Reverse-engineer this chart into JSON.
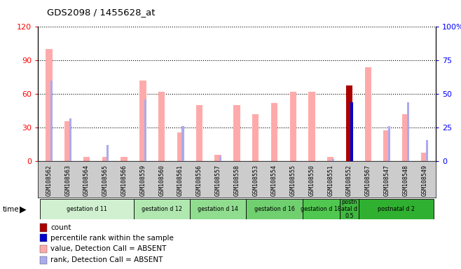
{
  "title": "GDS2098 / 1455628_at",
  "samples": [
    "GSM108562",
    "GSM108563",
    "GSM108564",
    "GSM108565",
    "GSM108566",
    "GSM108559",
    "GSM108560",
    "GSM108561",
    "GSM108556",
    "GSM108557",
    "GSM108558",
    "GSM108553",
    "GSM108554",
    "GSM108555",
    "GSM108550",
    "GSM108551",
    "GSM108552",
    "GSM108567",
    "GSM108547",
    "GSM108548",
    "GSM108549"
  ],
  "value_absent": [
    100,
    36,
    4,
    4,
    4,
    72,
    62,
    26,
    50,
    6,
    50,
    42,
    52,
    62,
    62,
    4,
    0,
    84,
    28,
    42,
    8
  ],
  "rank_absent": [
    60,
    32,
    0,
    12,
    0,
    46,
    0,
    26,
    0,
    4,
    0,
    0,
    0,
    0,
    0,
    2,
    0,
    0,
    26,
    44,
    16
  ],
  "count_bar": [
    0,
    0,
    0,
    0,
    0,
    0,
    0,
    0,
    0,
    0,
    0,
    0,
    0,
    0,
    0,
    0,
    68,
    0,
    0,
    0,
    0
  ],
  "percentile_bar": [
    0,
    0,
    0,
    0,
    0,
    0,
    0,
    0,
    0,
    0,
    0,
    0,
    0,
    0,
    0,
    0,
    44,
    0,
    0,
    0,
    0
  ],
  "groups": [
    {
      "label": "gestation d 11",
      "start": 0,
      "end": 5,
      "color": "#d0f0d0"
    },
    {
      "label": "gestation d 12",
      "start": 5,
      "end": 8,
      "color": "#b0e8b0"
    },
    {
      "label": "gestation d 14",
      "start": 8,
      "end": 11,
      "color": "#90dd90"
    },
    {
      "label": "gestation d 16",
      "start": 11,
      "end": 14,
      "color": "#70d070"
    },
    {
      "label": "gestation d 18",
      "start": 14,
      "end": 16,
      "color": "#50c850"
    },
    {
      "label": "postn\natal d\n0.5",
      "start": 16,
      "end": 17,
      "color": "#40b840"
    },
    {
      "label": "postnatal d 2",
      "start": 17,
      "end": 21,
      "color": "#30b030"
    }
  ],
  "ylim_left": [
    0,
    120
  ],
  "ylim_right": [
    0,
    100
  ],
  "yticks_left": [
    0,
    30,
    60,
    90,
    120
  ],
  "yticks_right": [
    0,
    25,
    50,
    75,
    100
  ],
  "color_value_absent": "#ffaaaa",
  "color_rank_absent": "#aaaaee",
  "color_count": "#aa0000",
  "color_percentile": "#0000cc",
  "legend_items": [
    {
      "color": "#aa0000",
      "label": "count"
    },
    {
      "color": "#0000cc",
      "label": "percentile rank within the sample"
    },
    {
      "color": "#ffaaaa",
      "label": "value, Detection Call = ABSENT"
    },
    {
      "color": "#aaaaee",
      "label": "rank, Detection Call = ABSENT"
    }
  ]
}
